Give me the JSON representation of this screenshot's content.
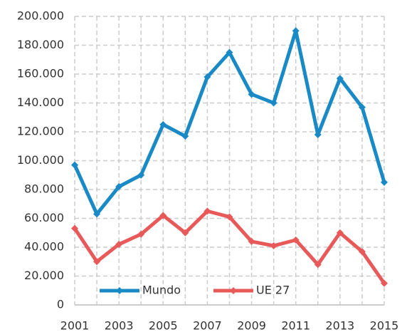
{
  "chart_data": {
    "type": "line",
    "categories": [
      "2001",
      null,
      "2003",
      null,
      "2005",
      null,
      "2007",
      null,
      "2009",
      null,
      "2011",
      null,
      "2013",
      null,
      "2015"
    ],
    "series": [
      {
        "name": "Mundo",
        "color": "#1a8ac6",
        "values": [
          97000,
          63000,
          82000,
          90000,
          125000,
          117000,
          158000,
          175000,
          146000,
          140000,
          190000,
          118000,
          157000,
          137000,
          85000
        ]
      },
      {
        "name": "UE 27",
        "color": "#e85a5a",
        "values": [
          53000,
          30000,
          42000,
          49000,
          62000,
          50000,
          65000,
          61000,
          44000,
          41000,
          45000,
          28000,
          50000,
          37000,
          15000
        ]
      }
    ],
    "ylim": [
      0,
      200000
    ],
    "yticks": [
      0,
      {
        "value": 20000,
        "label": "20.000"
      },
      {
        "value": 40000,
        "label": "40.000"
      },
      {
        "value": 60000,
        "label": "60.000"
      },
      {
        "value": 80000,
        "label": "80.000"
      },
      {
        "value": 100000,
        "label": "100.000"
      },
      {
        "value": 120000,
        "label": "120.000"
      },
      {
        "value": 140000,
        "label": "140.000"
      },
      {
        "value": 160000,
        "label": "160.000"
      },
      {
        "value": 180000,
        "label": "180.000"
      },
      {
        "value": 200000,
        "label": "200.000"
      }
    ],
    "grid": true,
    "legend": "bottom"
  }
}
